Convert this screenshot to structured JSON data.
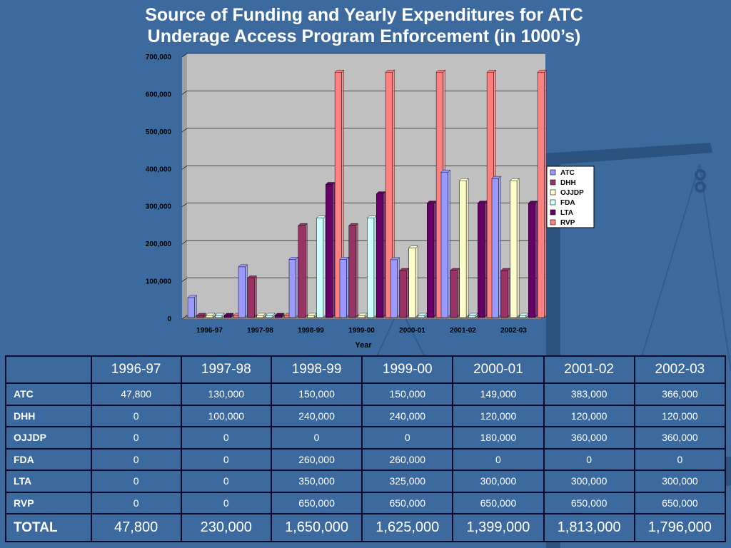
{
  "title": {
    "line1": "Source of Funding and Yearly Expenditures for ATC",
    "line2": "Underage Access Program Enforcement (in 1000’s)"
  },
  "chart_data": {
    "type": "bar",
    "categories": [
      "1996-97",
      "1997-98",
      "1998-99",
      "1999-00",
      "2000-01",
      "2001-02",
      "2002-03"
    ],
    "series": [
      {
        "name": "ATC",
        "color": "#9999ff",
        "values": [
          47800,
          130000,
          150000,
          150000,
          149000,
          383000,
          366000
        ]
      },
      {
        "name": "DHH",
        "color": "#993366",
        "values": [
          0,
          100000,
          240000,
          240000,
          120000,
          120000,
          120000
        ]
      },
      {
        "name": "OJJDP",
        "color": "#ffffcc",
        "values": [
          0,
          0,
          0,
          0,
          180000,
          360000,
          360000
        ]
      },
      {
        "name": "FDA",
        "color": "#ccffff",
        "values": [
          0,
          0,
          260000,
          260000,
          0,
          0,
          0
        ]
      },
      {
        "name": "LTA",
        "color": "#660066",
        "values": [
          0,
          0,
          350000,
          325000,
          300000,
          300000,
          300000
        ]
      },
      {
        "name": "RVP",
        "color": "#ff8080",
        "values": [
          0,
          0,
          650000,
          650000,
          650000,
          650000,
          650000
        ]
      }
    ],
    "xlabel": "Year",
    "ylabel": "",
    "ylim": [
      0,
      700000
    ],
    "yticks": [
      "0",
      "100,000",
      "200,000",
      "300,000",
      "400,000",
      "500,000",
      "600,000",
      "700,000"
    ],
    "grid": true,
    "legend": "right"
  },
  "table": {
    "headers": [
      "",
      "1996-97",
      "1997-98",
      "1998-99",
      "1999-00",
      "2000-01",
      "2001-02",
      "2002-03"
    ],
    "rows": [
      {
        "label": "ATC",
        "cells": [
          "47,800",
          "130,000",
          "150,000",
          "150,000",
          "149,000",
          "383,000",
          "366,000"
        ]
      },
      {
        "label": "DHH",
        "cells": [
          "0",
          "100,000",
          "240,000",
          "240,000",
          "120,000",
          "120,000",
          "120,000"
        ]
      },
      {
        "label": "OJJDP",
        "cells": [
          "0",
          "0",
          "0",
          "0",
          "180,000",
          "360,000",
          "360,000"
        ]
      },
      {
        "label": "FDA",
        "cells": [
          "0",
          "0",
          "260,000",
          "260,000",
          "0",
          "0",
          "0"
        ]
      },
      {
        "label": "LTA",
        "cells": [
          "0",
          "0",
          "350,000",
          "325,000",
          "300,000",
          "300,000",
          "300,000"
        ]
      },
      {
        "label": "RVP",
        "cells": [
          "0",
          "0",
          "650,000",
          "650,000",
          "650,000",
          "650,000",
          "650,000"
        ]
      }
    ],
    "total": {
      "label": "TOTAL",
      "cells": [
        "47,800",
        "230,000",
        "1,650,000",
        "1,625,000",
        "1,399,000",
        "1,813,000",
        "1,796,000"
      ]
    }
  }
}
